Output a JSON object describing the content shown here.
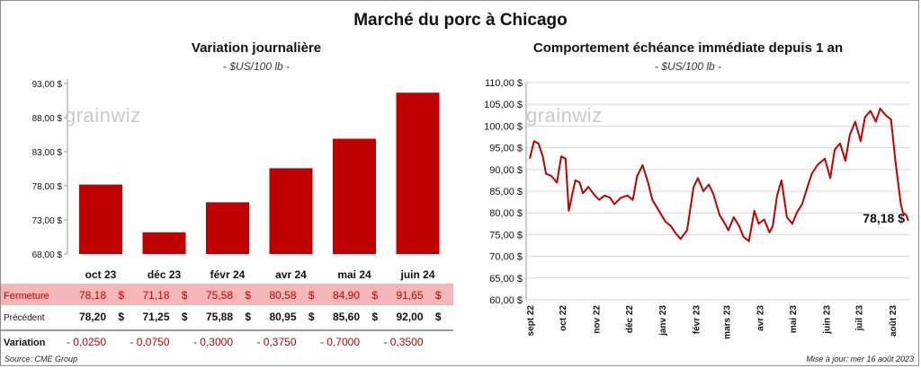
{
  "title": "Marché du porc à Chicago",
  "left": {
    "title": "Variation journalière",
    "unit": "- $US/100 lb -",
    "y_ticks": [
      "93,00 $",
      "88,00 $",
      "83,00 $",
      "78,00 $",
      "73,00 $",
      "68,00 $"
    ],
    "table": {
      "columns": [
        "oct 23",
        "déc 23",
        "févr 24",
        "avr 24",
        "mai 24",
        "juin 24"
      ],
      "rows": [
        {
          "label": "Fermeture",
          "values": [
            "78,18",
            "71,18",
            "75,58",
            "80,58",
            "84,90",
            "91,65"
          ],
          "suffix": "$"
        },
        {
          "label": "Précédent",
          "values": [
            "78,20",
            "71,25",
            "75,88",
            "80,95",
            "85,60",
            "92,00"
          ],
          "suffix": "$"
        },
        {
          "label": "Variation",
          "values": [
            "- 0,0250",
            "- 0,0750",
            "- 0,3000",
            "- 0,3750",
            "- 0,7000",
            "- 0,3500"
          ],
          "suffix": ""
        }
      ]
    }
  },
  "right": {
    "title": "Comportement  échéance immédiate depuis 1 an",
    "unit": "- $US/100 lb -",
    "y_ticks": [
      "110,00 $",
      "105,00 $",
      "100,00 $",
      "95,00 $",
      "90,00 $",
      "85,00 $",
      "80,00 $",
      "75,00 $",
      "70,00 $",
      "65,00 $",
      "60,00 $"
    ],
    "x_ticks": [
      "sept 22",
      "oct 22",
      "nov 22",
      "déc 22",
      "janv 23",
      "févr 23",
      "mars 23",
      "avr 23",
      "mai 23",
      "juin 23",
      "juil 23",
      "août 23"
    ],
    "last_label": "78,18 $"
  },
  "logo_text": "grainwiz",
  "source": "Source: CME Group",
  "update": "Mise à jour: mer 16 août 2023",
  "colors": {
    "bar": "#c00000",
    "highlight_row": "#f4b6b6",
    "line": "#c00000",
    "negative": "#c00000"
  },
  "chart_data": [
    {
      "type": "bar",
      "title": "Variation journalière",
      "ylabel": "- $US/100 lb -",
      "categories": [
        "oct 23",
        "déc 23",
        "févr 24",
        "avr 24",
        "mai 24",
        "juin 24"
      ],
      "values": [
        78.18,
        71.18,
        75.58,
        80.58,
        84.9,
        91.65
      ],
      "ylim": [
        68,
        93
      ]
    },
    {
      "type": "line",
      "title": "Comportement  échéance immédiate depuis 1 an",
      "ylabel": "- $US/100 lb -",
      "x": [
        "2022-09-01",
        "2022-09-05",
        "2022-09-09",
        "2022-09-13",
        "2022-09-16",
        "2022-09-21",
        "2022-09-26",
        "2022-09-30",
        "2022-10-04",
        "2022-10-07",
        "2022-10-10",
        "2022-10-13",
        "2022-10-17",
        "2022-10-20",
        "2022-10-25",
        "2022-10-31",
        "2022-11-04",
        "2022-11-09",
        "2022-11-14",
        "2022-11-18",
        "2022-11-24",
        "2022-11-30",
        "2022-12-05",
        "2022-12-09",
        "2022-12-14",
        "2022-12-19",
        "2022-12-23",
        "2022-12-29",
        "2023-01-04",
        "2023-01-09",
        "2023-01-13",
        "2023-01-18",
        "2023-01-24",
        "2023-01-30",
        "2023-02-03",
        "2023-02-08",
        "2023-02-13",
        "2023-02-17",
        "2023-02-23",
        "2023-02-28",
        "2023-03-03",
        "2023-03-08",
        "2023-03-13",
        "2023-03-17",
        "2023-03-22",
        "2023-03-27",
        "2023-03-31",
        "2023-04-05",
        "2023-04-10",
        "2023-04-13",
        "2023-04-17",
        "2023-04-21",
        "2023-04-26",
        "2023-05-01",
        "2023-05-05",
        "2023-05-10",
        "2023-05-15",
        "2023-05-19",
        "2023-05-24",
        "2023-05-31",
        "2023-06-05",
        "2023-06-09",
        "2023-06-14",
        "2023-06-19",
        "2023-06-23",
        "2023-06-28",
        "2023-07-03",
        "2023-07-07",
        "2023-07-12",
        "2023-07-17",
        "2023-07-21",
        "2023-07-26",
        "2023-07-31",
        "2023-08-04",
        "2023-08-09",
        "2023-08-11",
        "2023-08-14",
        "2023-08-16"
      ],
      "values": [
        92.5,
        96.5,
        96.0,
        93.0,
        89.0,
        88.5,
        87.0,
        93.0,
        92.5,
        80.5,
        84.0,
        87.5,
        87.0,
        84.5,
        86.0,
        84.0,
        83.0,
        84.0,
        83.5,
        82.0,
        83.5,
        84.0,
        83.0,
        88.5,
        91.0,
        87.0,
        83.0,
        80.5,
        78.0,
        77.0,
        75.5,
        74.0,
        76.0,
        86.0,
        88.0,
        85.0,
        86.5,
        84.5,
        79.5,
        77.5,
        76.0,
        79.0,
        77.0,
        74.5,
        73.5,
        80.5,
        77.5,
        78.5,
        75.5,
        77.0,
        84.0,
        87.5,
        79.0,
        77.5,
        80.0,
        82.0,
        86.0,
        89.0,
        91.0,
        92.5,
        88.0,
        94.5,
        96.0,
        92.0,
        98.0,
        101.0,
        96.5,
        102.0,
        103.5,
        101.0,
        104.0,
        102.5,
        101.5,
        92.0,
        82.0,
        80.0,
        79.5,
        78.18
      ],
      "ylim": [
        60,
        110
      ],
      "annotations": [
        "78,18 $"
      ]
    }
  ]
}
